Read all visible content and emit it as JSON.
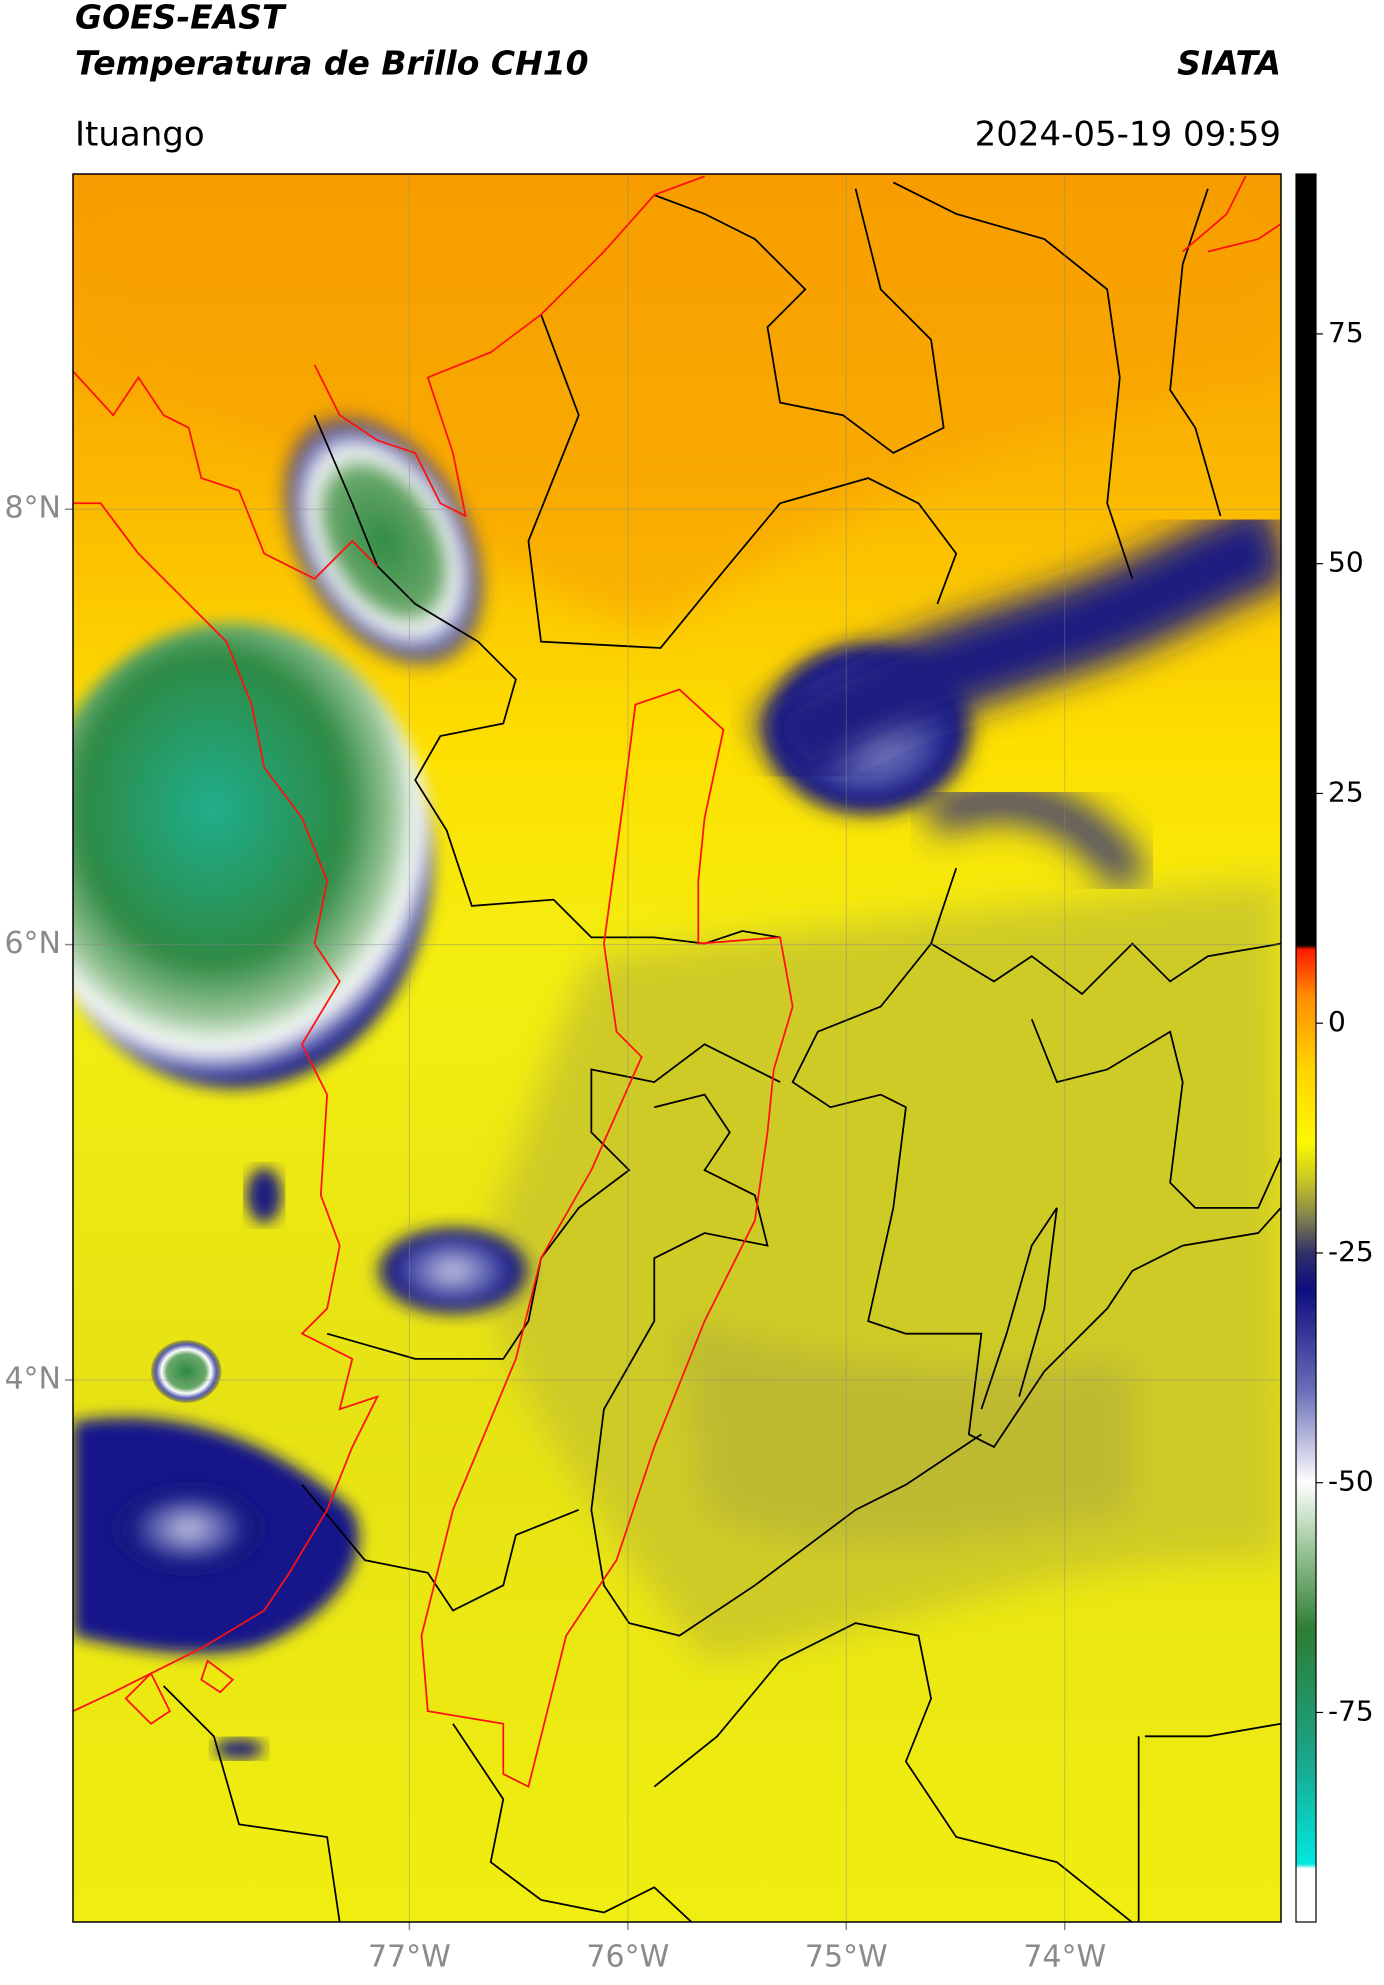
{
  "header": {
    "title": "GOES-EAST",
    "subtitle": "Temperatura de Brillo CH10",
    "source": "SIATA",
    "location": "Ituango",
    "datetime": "2024-05-19 09:59"
  },
  "map": {
    "xlim": [
      -78.54,
      -73.01
    ],
    "ylim": [
      1.51,
      9.54
    ],
    "xticks": [
      {
        "value": -77,
        "label": "77°W"
      },
      {
        "value": -76,
        "label": "76°W"
      },
      {
        "value": -75,
        "label": "75°W"
      },
      {
        "value": -74,
        "label": "74°W"
      }
    ],
    "yticks": [
      {
        "value": 8,
        "label": "8°N"
      },
      {
        "value": 6,
        "label": "6°N"
      },
      {
        "value": 4,
        "label": "4°N"
      }
    ],
    "grid": true
  },
  "colorbar": {
    "lim": [
      -97.8,
      92.4
    ],
    "ticks": [
      -75,
      -50,
      -25,
      0,
      25,
      50,
      75
    ],
    "stops": [
      {
        "value": -97.8,
        "color": "#ffffff"
      },
      {
        "value": -92,
        "color": "#ffffff"
      },
      {
        "value": -91.5,
        "color": "#00e8e0"
      },
      {
        "value": -80,
        "color": "#1aa58a"
      },
      {
        "value": -66,
        "color": "#2e7d32"
      },
      {
        "value": -57,
        "color": "#9cc79a"
      },
      {
        "value": -50,
        "color": "#ffffff"
      },
      {
        "value": -40,
        "color": "#6a6fb8"
      },
      {
        "value": -29,
        "color": "#0d0d80"
      },
      {
        "value": -25,
        "color": "#30306a"
      },
      {
        "value": -21,
        "color": "#84844e"
      },
      {
        "value": -17,
        "color": "#c9c722"
      },
      {
        "value": -13,
        "color": "#fcf800"
      },
      {
        "value": -5,
        "color": "#ffd400"
      },
      {
        "value": 3,
        "color": "#ff8c00"
      },
      {
        "value": 8,
        "color": "#ff1a00"
      },
      {
        "value": 8.5,
        "color": "#000000"
      },
      {
        "value": 92.4,
        "color": "#000000"
      }
    ]
  }
}
